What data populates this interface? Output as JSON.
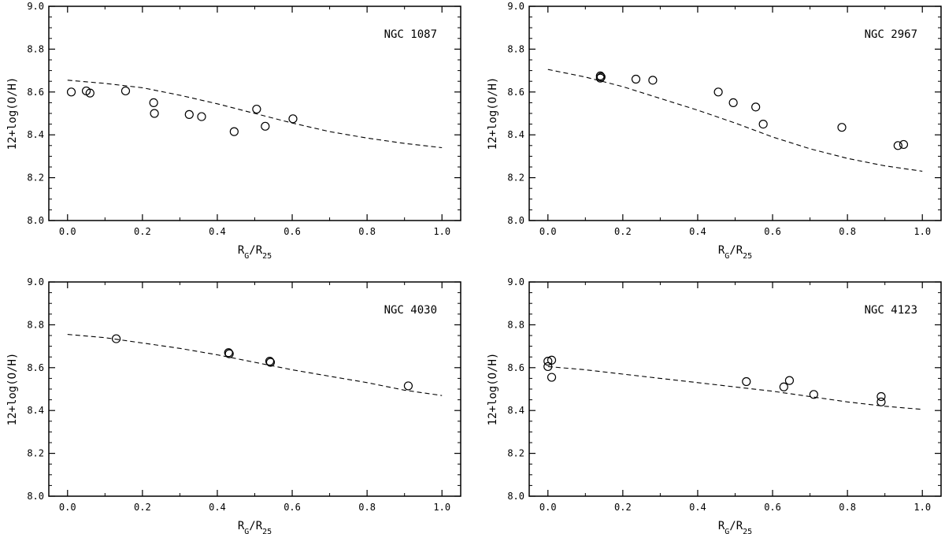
{
  "chart_data": [
    {
      "type": "scatter",
      "annotation": "NGC 1087",
      "xlabel": "R_G/R_25",
      "ylabel": "12+log(O/H)",
      "xlim": [
        -0.05,
        1.05
      ],
      "ylim": [
        8.0,
        9.0
      ],
      "xticks": [
        "0.0",
        "0.2",
        "0.4",
        "0.6",
        "0.8",
        "1.0"
      ],
      "yticks": [
        "8.0",
        "8.2",
        "8.4",
        "8.6",
        "8.8",
        "9.0"
      ],
      "points": {
        "x": [
          0.01,
          0.05,
          0.06,
          0.155,
          0.23,
          0.232,
          0.325,
          0.358,
          0.445,
          0.505,
          0.528,
          0.602
        ],
        "y": [
          8.6,
          8.605,
          8.595,
          8.605,
          8.55,
          8.5,
          8.495,
          8.485,
          8.415,
          8.52,
          8.44,
          8.475
        ]
      },
      "fit_line": {
        "x": [
          0.0,
          0.1,
          0.2,
          0.3,
          0.4,
          0.5,
          0.6,
          0.7,
          0.8,
          0.9,
          1.0
        ],
        "y": [
          8.655,
          8.64,
          8.62,
          8.585,
          8.545,
          8.5,
          8.455,
          8.415,
          8.385,
          8.36,
          8.34
        ]
      }
    },
    {
      "type": "scatter",
      "annotation": "NGC 2967",
      "xlabel": "R_G/R_25",
      "ylabel": "12+log(O/H)",
      "xlim": [
        -0.05,
        1.05
      ],
      "ylim": [
        8.0,
        9.0
      ],
      "xticks": [
        "0.0",
        "0.2",
        "0.4",
        "0.6",
        "0.8",
        "1.0"
      ],
      "yticks": [
        "8.0",
        "8.2",
        "8.4",
        "8.6",
        "8.8",
        "9.0"
      ],
      "points": {
        "x": [
          0.14,
          0.14,
          0.142,
          0.235,
          0.28,
          0.455,
          0.495,
          0.555,
          0.575,
          0.785,
          0.935,
          0.95
        ],
        "y": [
          8.675,
          8.665,
          8.67,
          8.66,
          8.655,
          8.6,
          8.55,
          8.53,
          8.45,
          8.435,
          8.35,
          8.355
        ]
      },
      "fit_line": {
        "x": [
          0.0,
          0.1,
          0.2,
          0.3,
          0.4,
          0.5,
          0.6,
          0.7,
          0.8,
          0.9,
          1.0
        ],
        "y": [
          8.705,
          8.67,
          8.625,
          8.57,
          8.515,
          8.455,
          8.39,
          8.335,
          8.29,
          8.255,
          8.23
        ]
      }
    },
    {
      "type": "scatter",
      "annotation": "NGC 4030",
      "xlabel": "R_G/R_25",
      "ylabel": "12+log(O/H)",
      "xlim": [
        -0.05,
        1.05
      ],
      "ylim": [
        8.0,
        9.0
      ],
      "xticks": [
        "0.0",
        "0.2",
        "0.4",
        "0.6",
        "0.8",
        "1.0"
      ],
      "yticks": [
        "8.0",
        "8.2",
        "8.4",
        "8.6",
        "8.8",
        "9.0"
      ],
      "points": {
        "x": [
          0.13,
          0.43,
          0.432,
          0.54,
          0.542,
          0.91
        ],
        "y": [
          8.735,
          8.67,
          8.665,
          8.63,
          8.625,
          8.515
        ]
      },
      "fit_line": {
        "x": [
          0.0,
          0.1,
          0.2,
          0.3,
          0.4,
          0.5,
          0.6,
          0.7,
          0.8,
          0.9,
          1.0
        ],
        "y": [
          8.755,
          8.74,
          8.715,
          8.69,
          8.66,
          8.625,
          8.59,
          8.56,
          8.53,
          8.495,
          8.47
        ]
      }
    },
    {
      "type": "scatter",
      "annotation": "NGC 4123",
      "xlabel": "R_G/R_25",
      "ylabel": "12+log(O/H)",
      "xlim": [
        -0.05,
        1.05
      ],
      "ylim": [
        8.0,
        9.0
      ],
      "xticks": [
        "0.0",
        "0.2",
        "0.4",
        "0.6",
        "0.8",
        "1.0"
      ],
      "yticks": [
        "8.0",
        "8.2",
        "8.4",
        "8.6",
        "8.8",
        "9.0"
      ],
      "points": {
        "x": [
          0.0,
          0.01,
          0.0,
          0.01,
          0.53,
          0.63,
          0.645,
          0.71,
          0.89,
          0.89
        ],
        "y": [
          8.63,
          8.635,
          8.605,
          8.555,
          8.535,
          8.51,
          8.54,
          8.475,
          8.465,
          8.44
        ]
      },
      "fit_line": {
        "x": [
          0.0,
          0.1,
          0.2,
          0.3,
          0.4,
          0.5,
          0.6,
          0.7,
          0.8,
          0.9,
          1.0
        ],
        "y": [
          8.605,
          8.59,
          8.57,
          8.55,
          8.53,
          8.51,
          8.49,
          8.465,
          8.44,
          8.42,
          8.405
        ]
      }
    }
  ]
}
